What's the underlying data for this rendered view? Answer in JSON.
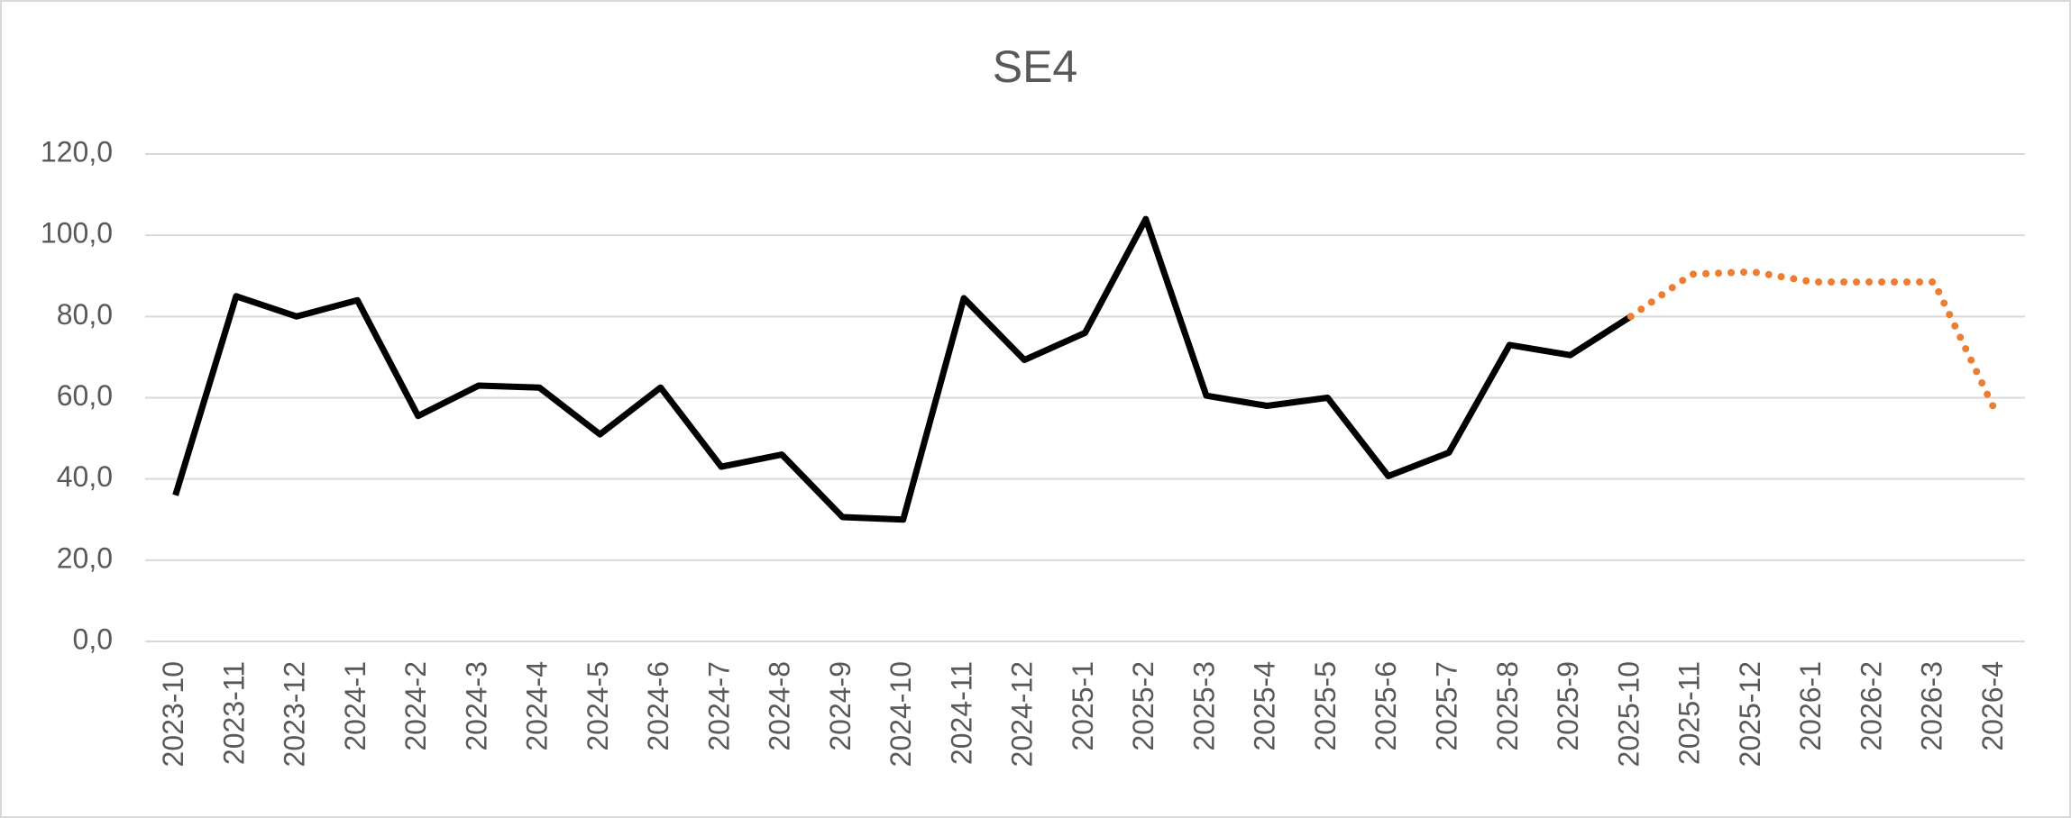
{
  "chart_data": {
    "type": "line",
    "title": "SE4",
    "categories": [
      "2023-10",
      "2023-11",
      "2023-12",
      "2024-1",
      "2024-2",
      "2024-3",
      "2024-4",
      "2024-5",
      "2024-6",
      "2024-7",
      "2024-8",
      "2024-9",
      "2024-10",
      "2024-11",
      "2024-12",
      "2025-1",
      "2025-2",
      "2025-3",
      "2025-4",
      "2025-5",
      "2025-6",
      "2025-7",
      "2025-8",
      "2025-9",
      "2025-10",
      "2025-11",
      "2025-12",
      "2026-1",
      "2026-2",
      "2026-3",
      "2026-4"
    ],
    "series": [
      {
        "color": "#000000",
        "style": "solid",
        "values": [
          36,
          85,
          80,
          84,
          55.5,
          63,
          62.5,
          51,
          62.5,
          43,
          46,
          30.6,
          30,
          84.5,
          69.3,
          76,
          104,
          60.5,
          58,
          60,
          40.7,
          46.5,
          73,
          70.5,
          80,
          null,
          null,
          null,
          null,
          null,
          null
        ]
      },
      {
        "color": "#ed7d31",
        "style": "dotted",
        "values": [
          null,
          null,
          null,
          null,
          null,
          null,
          null,
          null,
          null,
          null,
          null,
          null,
          null,
          null,
          null,
          null,
          null,
          null,
          null,
          null,
          null,
          null,
          null,
          null,
          80,
          90.4,
          91,
          88.5,
          88.5,
          88.5,
          57
        ]
      }
    ],
    "ylim": [
      0,
      120
    ],
    "yticks": [
      {
        "value": 0,
        "label": "0,0"
      },
      {
        "value": 20,
        "label": "20,0"
      },
      {
        "value": 40,
        "label": "40,0"
      },
      {
        "value": 60,
        "label": "60,0"
      },
      {
        "value": 80,
        "label": "80,0"
      },
      {
        "value": 100,
        "label": "100,0"
      },
      {
        "value": 120,
        "label": "120,0"
      }
    ],
    "grid": true
  }
}
